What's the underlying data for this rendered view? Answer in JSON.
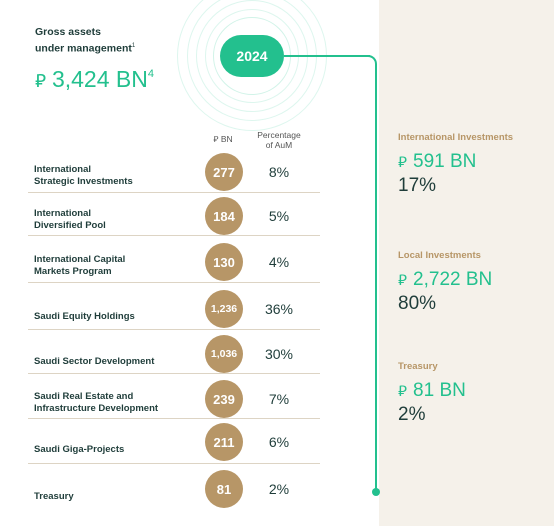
{
  "header": {
    "gross_label_line1": "Gross assets",
    "gross_label_line2": "under management",
    "gross_label_footnote": "1",
    "gross_currency": "⃁",
    "gross_value": "3,424 BN",
    "gross_value_footnote": "4",
    "year": "2024"
  },
  "table": {
    "col_bn_currency": "⃁",
    "col_bn": "BN",
    "col_pct_line1": "Percentage",
    "col_pct_line2": "of AuM",
    "rows": [
      {
        "label_line1": "International",
        "label_line2": "Strategic Investments",
        "bn": "277",
        "pct": "8%"
      },
      {
        "label_line1": "International",
        "label_line2": "Diversified Pool",
        "bn": "184",
        "pct": "5%"
      },
      {
        "label_line1": "International Capital",
        "label_line2": "Markets Program",
        "bn": "130",
        "pct": "4%"
      },
      {
        "label_line1": "Saudi Equity Holdings",
        "label_line2": "",
        "bn": "1,236",
        "pct": "36%"
      },
      {
        "label_line1": "Saudi Sector Development",
        "label_line2": "",
        "bn": "1,036",
        "pct": "30%"
      },
      {
        "label_line1": "Saudi Real Estate and",
        "label_line2": "Infrastructure Development",
        "bn": "239",
        "pct": "7%"
      },
      {
        "label_line1": "Saudi Giga-Projects",
        "label_line2": "",
        "bn": "211",
        "pct": "6%"
      },
      {
        "label_line1": "Treasury",
        "label_line2": "",
        "bn": "81",
        "pct": "2%"
      }
    ]
  },
  "sidebar": {
    "currency": "⃁",
    "blocks": [
      {
        "label": "International Investments",
        "value": "591 BN",
        "pct": "17%"
      },
      {
        "label": "Local Investments",
        "value": "2,722 BN",
        "pct": "80%"
      },
      {
        "label": "Treasury",
        "value": "81 BN",
        "pct": "2%"
      }
    ]
  },
  "colors": {
    "accent_green": "#23c08e",
    "gold": "#b79667",
    "text_dark": "#1f3d3a",
    "panel_bg": "#f5f1ea"
  }
}
